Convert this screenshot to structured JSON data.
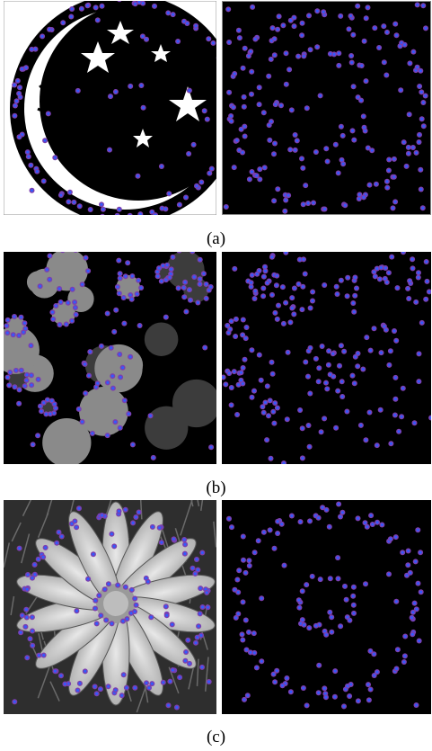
{
  "figure": {
    "captions": [
      "(a)",
      "(b)",
      "(c)"
    ],
    "colors": {
      "background_dark": "#000000",
      "point_outer": "#7b3fb0",
      "point_inner": "#2f5cff",
      "gray_blob": "#8a8a8a",
      "moon_white": "#ffffff"
    },
    "rows": [
      {
        "left_subject": "moon-and-stars",
        "right_subject": "detected-points"
      },
      {
        "left_subject": "gray-circles",
        "right_subject": "detected-points"
      },
      {
        "left_subject": "flower",
        "right_subject": "detected-points"
      }
    ]
  }
}
